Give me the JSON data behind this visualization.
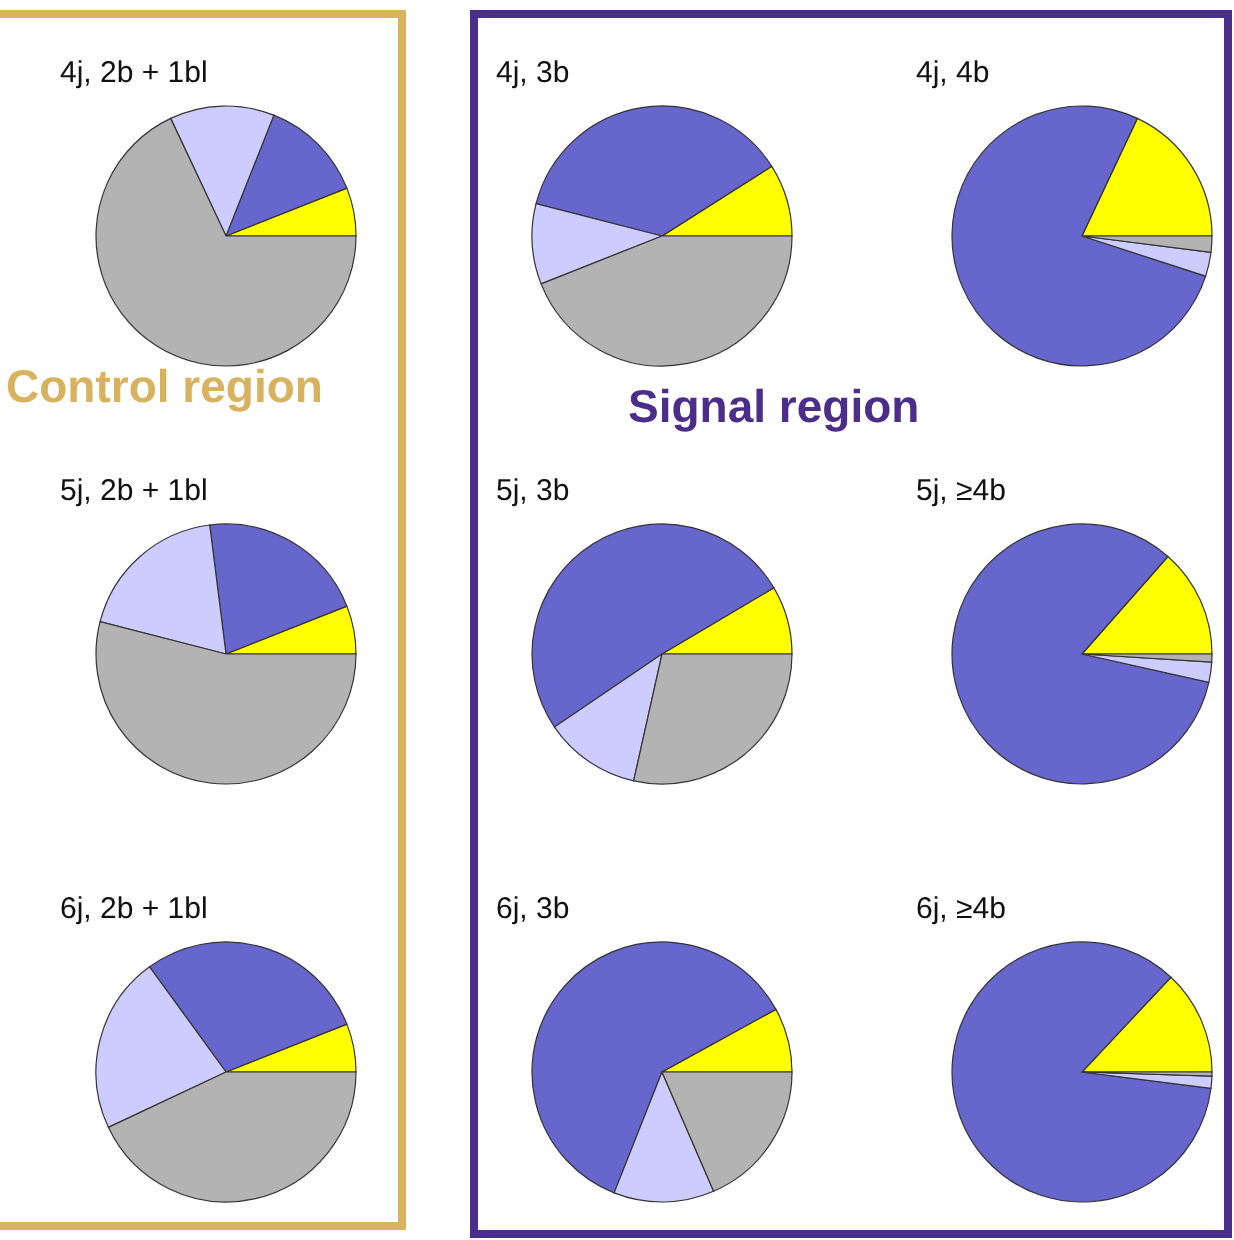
{
  "chart_data": [
    {
      "type": "pie",
      "title": "4j, 2b + 1bl",
      "categories": [
        null,
        null,
        null,
        null
      ],
      "values": [
        6,
        13,
        13,
        68
      ],
      "colors": [
        "#ffff00",
        "#6666cc",
        "#ccccff",
        "#b3b3b3"
      ],
      "annotations": [
        "Control region"
      ]
    },
    {
      "type": "pie",
      "title": "4j, 3b",
      "categories": [
        null,
        null,
        null,
        null
      ],
      "values": [
        9,
        37,
        10,
        44
      ],
      "colors": [
        "#ffff00",
        "#6666cc",
        "#ccccff",
        "#b3b3b3"
      ],
      "annotations": [
        "Signal region"
      ]
    },
    {
      "type": "pie",
      "title": "4j, 4b",
      "categories": [
        null,
        null,
        null,
        null
      ],
      "values": [
        18,
        77,
        3,
        2
      ],
      "colors": [
        "#ffff00",
        "#6666cc",
        "#ccccff",
        "#b3b3b3"
      ]
    },
    {
      "type": "pie",
      "title": "5j, 2b + 1bl",
      "categories": [
        null,
        null,
        null,
        null
      ],
      "values": [
        6,
        21,
        19,
        54
      ],
      "colors": [
        "#ffff00",
        "#6666cc",
        "#ccccff",
        "#b3b3b3"
      ]
    },
    {
      "type": "pie",
      "title": "5j, 3b",
      "categories": [
        null,
        null,
        null,
        null
      ],
      "values": [
        8.5,
        51,
        12,
        28.5
      ],
      "colors": [
        "#ffff00",
        "#6666cc",
        "#ccccff",
        "#b3b3b3"
      ]
    },
    {
      "type": "pie",
      "title": "5j, ≥4b",
      "categories": [
        null,
        null,
        null,
        null
      ],
      "values": [
        13.5,
        83,
        2.5,
        1
      ],
      "colors": [
        "#ffff00",
        "#6666cc",
        "#ccccff",
        "#b3b3b3"
      ]
    },
    {
      "type": "pie",
      "title": "6j, 2b + 1bl",
      "categories": [
        null,
        null,
        null,
        null
      ],
      "values": [
        6,
        29,
        22,
        43
      ],
      "colors": [
        "#ffff00",
        "#6666cc",
        "#ccccff",
        "#b3b3b3"
      ]
    },
    {
      "type": "pie",
      "title": "6j, 3b",
      "categories": [
        null,
        null,
        null,
        null
      ],
      "values": [
        8,
        61,
        12.5,
        18.5
      ],
      "colors": [
        "#ffff00",
        "#6666cc",
        "#ccccff",
        "#b3b3b3"
      ]
    },
    {
      "type": "pie",
      "title": "6j, ≥4b",
      "categories": [
        null,
        null,
        null,
        null
      ],
      "values": [
        13,
        85,
        1.5,
        0.5
      ],
      "colors": [
        "#ffff00",
        "#6666cc",
        "#ccccff",
        "#b3b3b3"
      ]
    }
  ]
}
